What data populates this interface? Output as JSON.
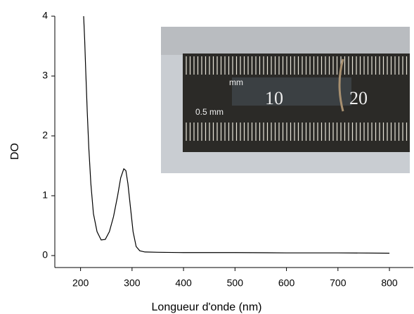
{
  "chart_data": {
    "type": "line",
    "x_label": "Longueur d'onde (nm)",
    "y_label": "DO",
    "xlim": [
      150,
      845
    ],
    "ylim": [
      -0.2,
      4
    ],
    "xticks": [
      200,
      300,
      400,
      500,
      600,
      700,
      800
    ],
    "yticks": [
      0,
      1,
      2,
      3,
      4
    ],
    "inset_labels": [
      "mm",
      "10",
      "20",
      "0.5 mm"
    ],
    "x": [
      206,
      208,
      210,
      213,
      216,
      220,
      225,
      232,
      240,
      248,
      256,
      264,
      272,
      278,
      284,
      288,
      292,
      297,
      302,
      308,
      315,
      325,
      350,
      400,
      500,
      600,
      700,
      800
    ],
    "series": [
      {
        "color": "#000000",
        "values": [
          4,
          3.6,
          3.1,
          2.4,
          1.8,
          1.2,
          0.7,
          0.4,
          0.26,
          0.27,
          0.4,
          0.65,
          1.0,
          1.3,
          1.45,
          1.42,
          1.2,
          0.8,
          0.4,
          0.15,
          0.08,
          0.06,
          0.055,
          0.05,
          0.05,
          0.045,
          0.045,
          0.04
        ]
      }
    ]
  }
}
